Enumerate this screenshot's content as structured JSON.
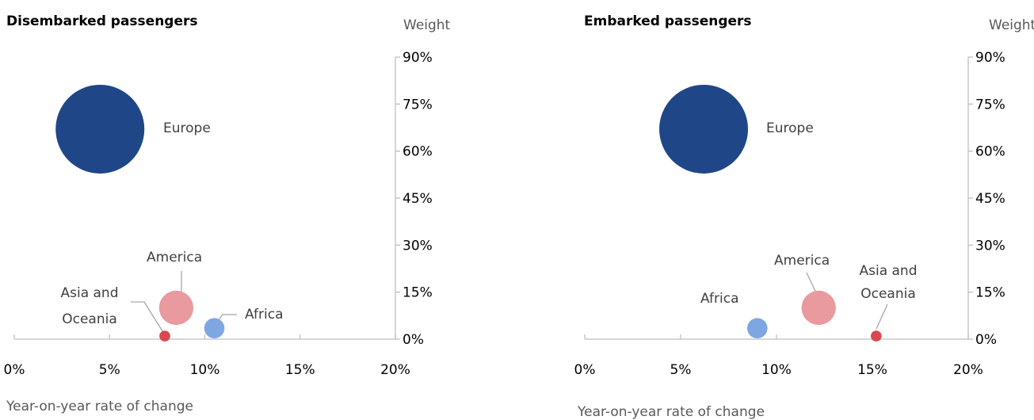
{
  "chart_data": [
    {
      "type": "scatter",
      "subtype": "bubble",
      "title": "Disembarked passengers",
      "xlabel": "Year-on-year rate of change",
      "ylabel": "Weight",
      "xlim": [
        0,
        20
      ],
      "ylim": [
        0,
        90
      ],
      "x_ticks": [
        "0%",
        "5%",
        "10%",
        "15%",
        "20%"
      ],
      "y_ticks": [
        "0%",
        "15%",
        "30%",
        "45%",
        "60%",
        "75%",
        "90%"
      ],
      "y_axis_side": "right",
      "grid": false,
      "legend": "none",
      "points": [
        {
          "label": "Europe",
          "x": 4.5,
          "y": 67,
          "size": 67,
          "color": "#1f4788"
        },
        {
          "label": "America",
          "x": 8.5,
          "y": 10,
          "size": 10,
          "color": "#e99a9e"
        },
        {
          "label": "Africa",
          "x": 10.5,
          "y": 3.5,
          "size": 3.5,
          "color": "#7ea6e0"
        },
        {
          "label": "Asia and Oceania",
          "x": 7.9,
          "y": 1,
          "size": 1,
          "color": "#d9474f"
        }
      ]
    },
    {
      "type": "scatter",
      "subtype": "bubble",
      "title": "Embarked passengers",
      "xlabel": "Year-on-year rate of change",
      "ylabel": "Weight",
      "xlim": [
        0,
        20
      ],
      "ylim": [
        0,
        90
      ],
      "x_ticks": [
        "0%",
        "5%",
        "10%",
        "15%",
        "20%"
      ],
      "y_ticks": [
        "0%",
        "15%",
        "30%",
        "45%",
        "60%",
        "75%",
        "90%"
      ],
      "y_axis_side": "right",
      "grid": false,
      "legend": "none",
      "points": [
        {
          "label": "Europe",
          "x": 6.2,
          "y": 67,
          "size": 67,
          "color": "#1f4788"
        },
        {
          "label": "America",
          "x": 12.2,
          "y": 10,
          "size": 10,
          "color": "#e99a9e"
        },
        {
          "label": "Africa",
          "x": 9,
          "y": 3.5,
          "size": 3.5,
          "color": "#7ea6e0"
        },
        {
          "label": "Asia and Oceania",
          "x": 15.2,
          "y": 1,
          "size": 1,
          "color": "#d9474f"
        }
      ]
    }
  ]
}
